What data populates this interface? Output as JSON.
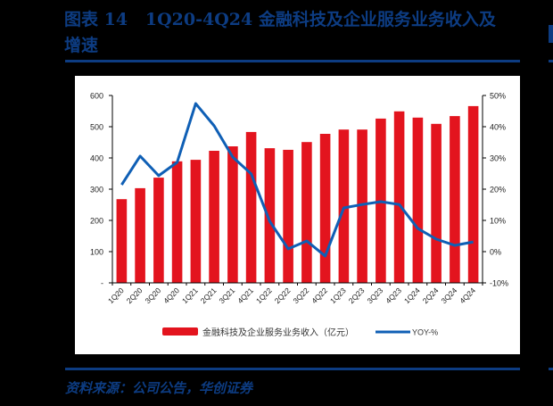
{
  "title": "图表 14 1Q20-4Q24 金融科技及企业服务业务收入及增速",
  "title_line1": "图表 14   1Q20-4Q24 金融科技及企业服务业务收入及",
  "title_line2": "增速",
  "source": "资料来源：公司公告，华创证券",
  "colors": {
    "bar": "#e3141e",
    "line": "#0f5fb5",
    "frame": "#0d3c82"
  },
  "legend": {
    "bar_label": "金融科技及企业服务业务收入（亿元）",
    "line_label": "YOY-%"
  },
  "chart_data": {
    "type": "bar+line",
    "title": "1Q20-4Q24 金融科技及企业服务业务收入及增速",
    "categories": [
      "1Q20",
      "2Q20",
      "3Q20",
      "4Q20",
      "1Q21",
      "2Q21",
      "3Q21",
      "4Q21",
      "1Q22",
      "2Q22",
      "3Q22",
      "4Q22",
      "1Q23",
      "2Q23",
      "3Q23",
      "4Q23",
      "1Q24",
      "2Q24",
      "3Q24",
      "4Q24"
    ],
    "series": [
      {
        "name": "金融科技及企业服务业务收入（亿元）",
        "type": "bar",
        "axis": "left",
        "values": [
          268,
          303,
          337,
          389,
          394,
          423,
          437,
          483,
          431,
          426,
          451,
          477,
          491,
          491,
          526,
          549,
          529,
          509,
          534,
          566
        ]
      },
      {
        "name": "YOY-%",
        "type": "line",
        "axis": "right",
        "values": [
          21.4,
          30.6,
          24.3,
          28.6,
          47.4,
          40.3,
          30.3,
          24.9,
          9.7,
          0.9,
          3.4,
          -1.4,
          14.0,
          15.1,
          16.0,
          15.1,
          7.4,
          4.0,
          2.0,
          3.1
        ]
      }
    ],
    "left_axis": {
      "ticks": [
        "-",
        "100",
        "200",
        "300",
        "400",
        "500",
        "600"
      ],
      "ylim": [
        0,
        600
      ]
    },
    "right_axis": {
      "ticks": [
        "-10%",
        "0%",
        "10%",
        "20%",
        "30%",
        "40%",
        "50%"
      ],
      "ylim": [
        -10,
        50
      ]
    },
    "xlabel": "",
    "ylabel": "",
    "grid": false,
    "legend_position": "bottom"
  }
}
